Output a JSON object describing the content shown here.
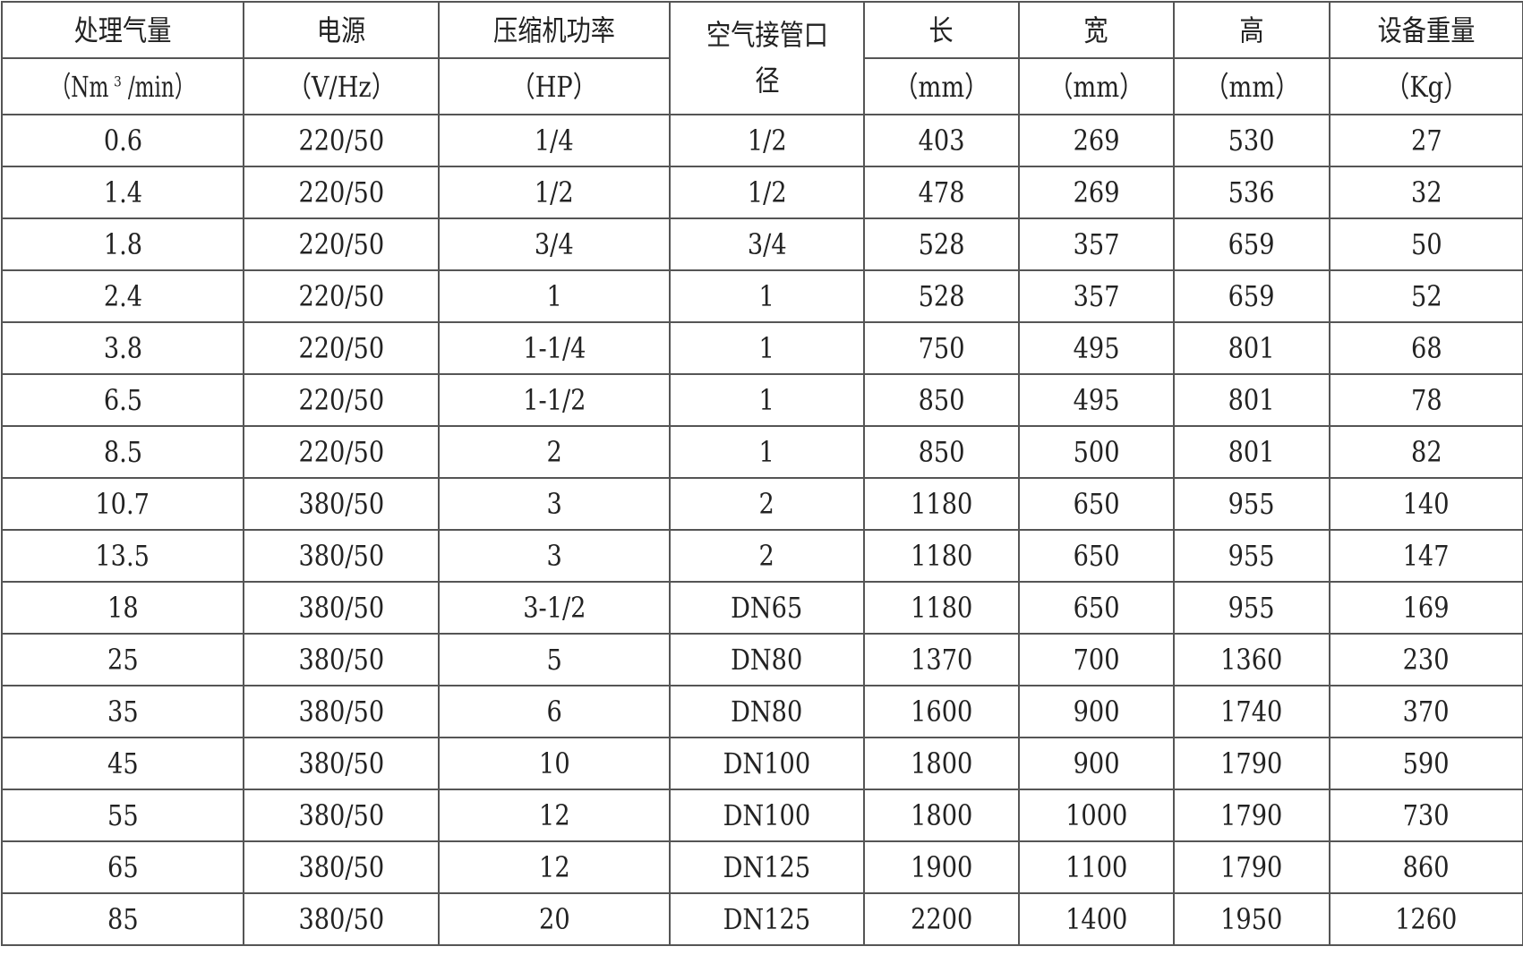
{
  "header": {
    "row1": [
      "处理气量",
      "电源",
      "压缩机功率",
      "空气接管口径",
      "长",
      "宽",
      "高",
      "设备重量"
    ],
    "units": {
      "flow_prefix": "（Nm",
      "flow_sup": "3",
      "flow_suffix": "/min）",
      "power": "（V/Hz）",
      "hp": "（HP）",
      "length": "（mm）",
      "width": "（mm）",
      "height": "（mm）",
      "weight": "（Kg）"
    }
  },
  "rows": [
    [
      "0.6",
      "220/50",
      "1/4",
      "1/2",
      "403",
      "269",
      "530",
      "27"
    ],
    [
      "1.4",
      "220/50",
      "1/2",
      "1/2",
      "478",
      "269",
      "536",
      "32"
    ],
    [
      "1.8",
      "220/50",
      "3/4",
      "3/4",
      "528",
      "357",
      "659",
      "50"
    ],
    [
      "2.4",
      "220/50",
      "1",
      "1",
      "528",
      "357",
      "659",
      "52"
    ],
    [
      "3.8",
      "220/50",
      "1-1/4",
      "1",
      "750",
      "495",
      "801",
      "68"
    ],
    [
      "6.5",
      "220/50",
      "1-1/2",
      "1",
      "850",
      "495",
      "801",
      "78"
    ],
    [
      "8.5",
      "220/50",
      "2",
      "1",
      "850",
      "500",
      "801",
      "82"
    ],
    [
      "10.7",
      "380/50",
      "3",
      "2",
      "1180",
      "650",
      "955",
      "140"
    ],
    [
      "13.5",
      "380/50",
      "3",
      "2",
      "1180",
      "650",
      "955",
      "147"
    ],
    [
      "18",
      "380/50",
      "3-1/2",
      "DN65",
      "1180",
      "650",
      "955",
      "169"
    ],
    [
      "25",
      "380/50",
      "5",
      "DN80",
      "1370",
      "700",
      "1360",
      "230"
    ],
    [
      "35",
      "380/50",
      "6",
      "DN80",
      "1600",
      "900",
      "1740",
      "370"
    ],
    [
      "45",
      "380/50",
      "10",
      "DN100",
      "1800",
      "900",
      "1790",
      "590"
    ],
    [
      "55",
      "380/50",
      "12",
      "DN100",
      "1800",
      "1000",
      "1790",
      "730"
    ],
    [
      "65",
      "380/50",
      "12",
      "DN125",
      "1900",
      "1100",
      "1790",
      "860"
    ],
    [
      "85",
      "380/50",
      "20",
      "DN125",
      "2200",
      "1400",
      "1950",
      "1260"
    ]
  ]
}
